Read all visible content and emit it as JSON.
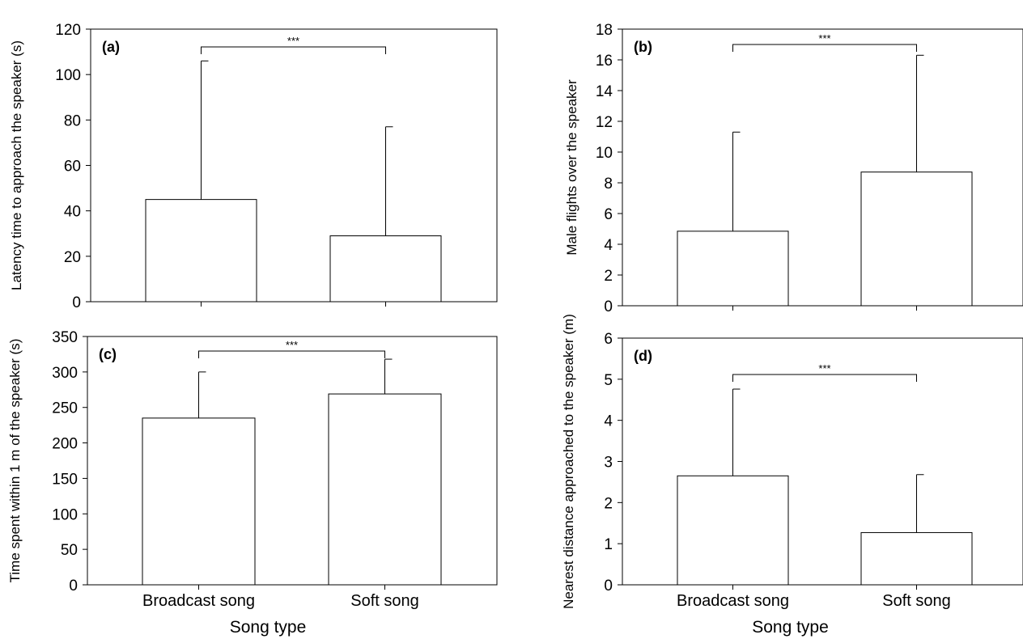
{
  "figure": {
    "xlabel": "Song type"
  },
  "chart_data": [
    {
      "type": "bar",
      "panel_label": "(a)",
      "ylabel": "Latency time to approach the speaker (s)",
      "categories": [
        "Broadcast song",
        "Soft song"
      ],
      "values": [
        45,
        29
      ],
      "error_upper": [
        106,
        77
      ],
      "ylim": [
        0,
        120
      ],
      "yticks": [
        0,
        20,
        40,
        60,
        80,
        100,
        120
      ],
      "significance": "***",
      "show_category_labels": false,
      "show_xlabel": false,
      "grid": false
    },
    {
      "type": "bar",
      "panel_label": "(b)",
      "ylabel": "Male flights over the speaker",
      "categories": [
        "Broadcast song",
        "Soft song"
      ],
      "values": [
        4.85,
        8.7
      ],
      "error_upper": [
        11.3,
        16.3
      ],
      "ylim": [
        0,
        18
      ],
      "yticks": [
        0,
        2,
        4,
        6,
        8,
        10,
        12,
        14,
        16,
        18
      ],
      "significance": "***",
      "show_category_labels": false,
      "show_xlabel": false,
      "grid": false
    },
    {
      "type": "bar",
      "panel_label": "(c)",
      "ylabel": "Time spent within 1 m of the speaker (s)",
      "categories": [
        "Broadcast song",
        "Soft song"
      ],
      "values": [
        235,
        269
      ],
      "error_upper": [
        300,
        318
      ],
      "ylim": [
        0,
        350
      ],
      "yticks": [
        0,
        50,
        100,
        150,
        200,
        250,
        300,
        350
      ],
      "significance": "***",
      "show_category_labels": true,
      "show_xlabel": true,
      "grid": false
    },
    {
      "type": "bar",
      "panel_label": "(d)",
      "ylabel": "Nearest distance approached to the speaker (m)",
      "categories": [
        "Broadcast song",
        "Soft song"
      ],
      "values": [
        2.65,
        1.27
      ],
      "error_upper": [
        4.76,
        2.68
      ],
      "ylim": [
        0,
        6
      ],
      "yticks": [
        0,
        1,
        2,
        3,
        4,
        5,
        6
      ],
      "significance": "***",
      "show_category_labels": true,
      "show_xlabel": true,
      "grid": false
    }
  ]
}
